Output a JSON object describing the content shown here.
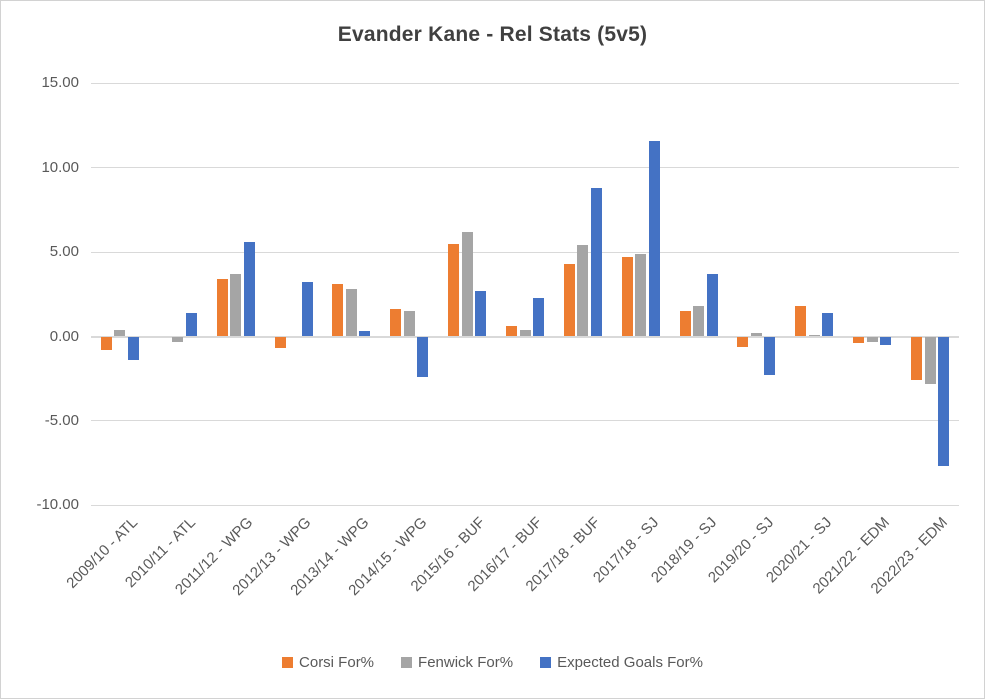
{
  "chart_data": {
    "type": "bar",
    "title": "Evander Kane - Rel Stats (5v5)",
    "categories": [
      "2009/10 - ATL",
      "2010/11 - ATL",
      "2011/12 - WPG",
      "2012/13 - WPG",
      "2013/14 - WPG",
      "2014/15 - WPG",
      "2015/16 - BUF",
      "2016/17 - BUF",
      "2017/18 - BUF",
      "2017/18 - SJ",
      "2018/19 - SJ",
      "2019/20 - SJ",
      "2020/21 - SJ",
      "2021/22 - EDM",
      "2022/23 - EDM"
    ],
    "series": [
      {
        "name": "Corsi For%",
        "color": "#ED7D31",
        "values": [
          -0.8,
          0,
          3.4,
          -0.7,
          3.1,
          1.6,
          5.5,
          0.6,
          4.3,
          4.7,
          1.5,
          -0.6,
          1.8,
          -0.4,
          -2.6
        ]
      },
      {
        "name": "Fenwick For%",
        "color": "#A5A5A5",
        "values": [
          0.4,
          -0.3,
          3.7,
          0,
          2.8,
          1.5,
          6.2,
          0.4,
          5.4,
          4.9,
          1.8,
          0.2,
          0.1,
          -0.3,
          -2.8
        ]
      },
      {
        "name": "Expected Goals For%",
        "color": "#4472C4",
        "values": [
          -1.4,
          1.4,
          5.6,
          3.2,
          0.3,
          -2.4,
          2.7,
          2.3,
          8.8,
          11.6,
          3.7,
          -2.3,
          1.4,
          -0.5,
          -7.7
        ]
      }
    ],
    "y_axis": {
      "ticks": [
        15,
        10,
        5,
        0,
        -5,
        -10
      ],
      "tick_labels": [
        "15.00",
        "10.00",
        "5.00",
        "0.00",
        "-5.00",
        "-10.00"
      ],
      "ylim": [
        -10,
        15
      ]
    },
    "xlabel": "",
    "ylabel": "",
    "grid": true,
    "legend_position": "bottom",
    "colors": {
      "gridline": "#D9D9D9",
      "axis_text": "#595959",
      "title_text": "#404040",
      "border": "#D2D2D2",
      "background": "#FFFFFF"
    }
  }
}
